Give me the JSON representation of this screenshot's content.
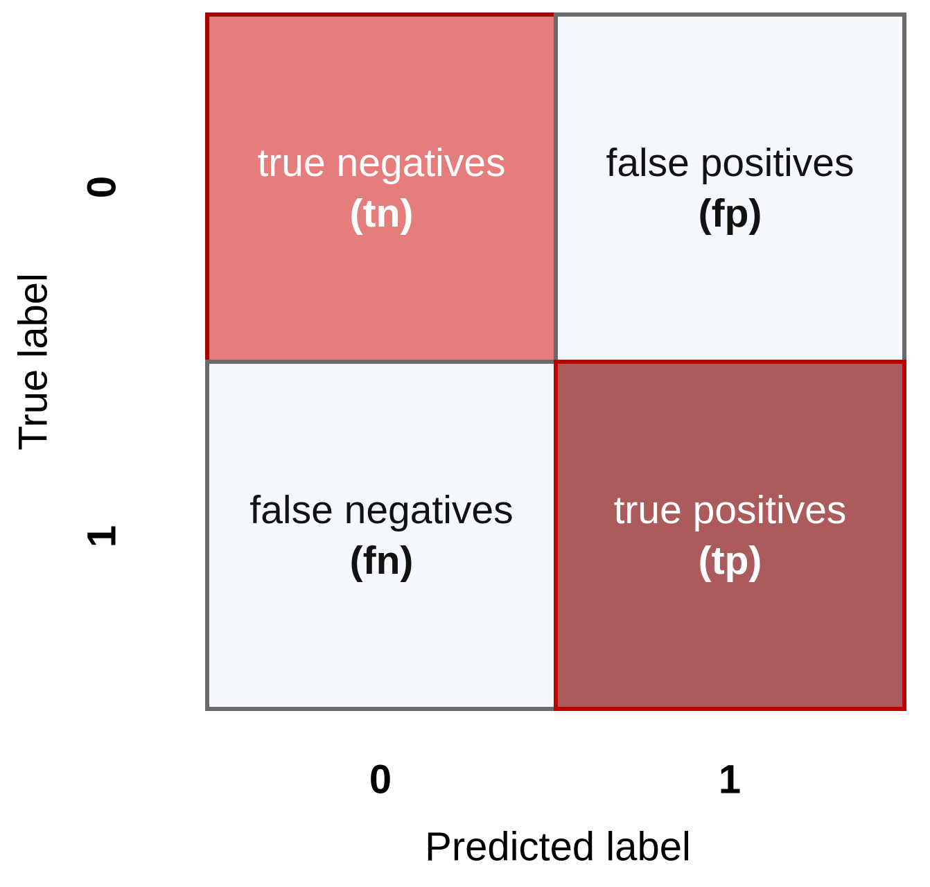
{
  "figure": {
    "xlabel": "Predicted label",
    "ylabel": "True label",
    "x_ticks": [
      "0",
      "1"
    ],
    "y_ticks": [
      "0",
      "1"
    ]
  },
  "cells": {
    "tn": {
      "line1": "true negatives",
      "line2": "(tn)",
      "fill": "#e57d7d",
      "border": "#a50304",
      "text_color": "#ffffff"
    },
    "fp": {
      "line1": "false positives",
      "line2": "(fp)",
      "fill": "#f5f8fd",
      "border": "#6b6b6b",
      "text_color": "#121212"
    },
    "fn": {
      "line1": "false negatives",
      "line2": "(fn)",
      "fill": "#f5f8fd",
      "border": "#6b6b6b",
      "text_color": "#121212"
    },
    "tp": {
      "line1": "true positives",
      "line2": "(tp)",
      "fill": "#ab5b5b",
      "border": "#bd0102",
      "text_color": "#ffffff"
    }
  },
  "chart_data": {
    "type": "heatmap",
    "title": "",
    "xlabel": "Predicted label",
    "ylabel": "True label",
    "x_categories": [
      "0",
      "1"
    ],
    "y_categories": [
      "0",
      "1"
    ],
    "legend": "none",
    "grid": false,
    "cells": [
      {
        "true_label": "0",
        "predicted_label": "0",
        "name": "true negatives",
        "abbrev": "tn",
        "fill": "#e57d7d",
        "border": "#a50304",
        "text_color": "#ffffff"
      },
      {
        "true_label": "0",
        "predicted_label": "1",
        "name": "false positives",
        "abbrev": "fp",
        "fill": "#f5f8fd",
        "border": "#6b6b6b",
        "text_color": "#121212"
      },
      {
        "true_label": "1",
        "predicted_label": "0",
        "name": "false negatives",
        "abbrev": "fn",
        "fill": "#f5f8fd",
        "border": "#6b6b6b",
        "text_color": "#121212"
      },
      {
        "true_label": "1",
        "predicted_label": "1",
        "name": "true positives",
        "abbrev": "tp",
        "fill": "#ab5b5b",
        "border": "#bd0102",
        "text_color": "#ffffff"
      }
    ]
  }
}
